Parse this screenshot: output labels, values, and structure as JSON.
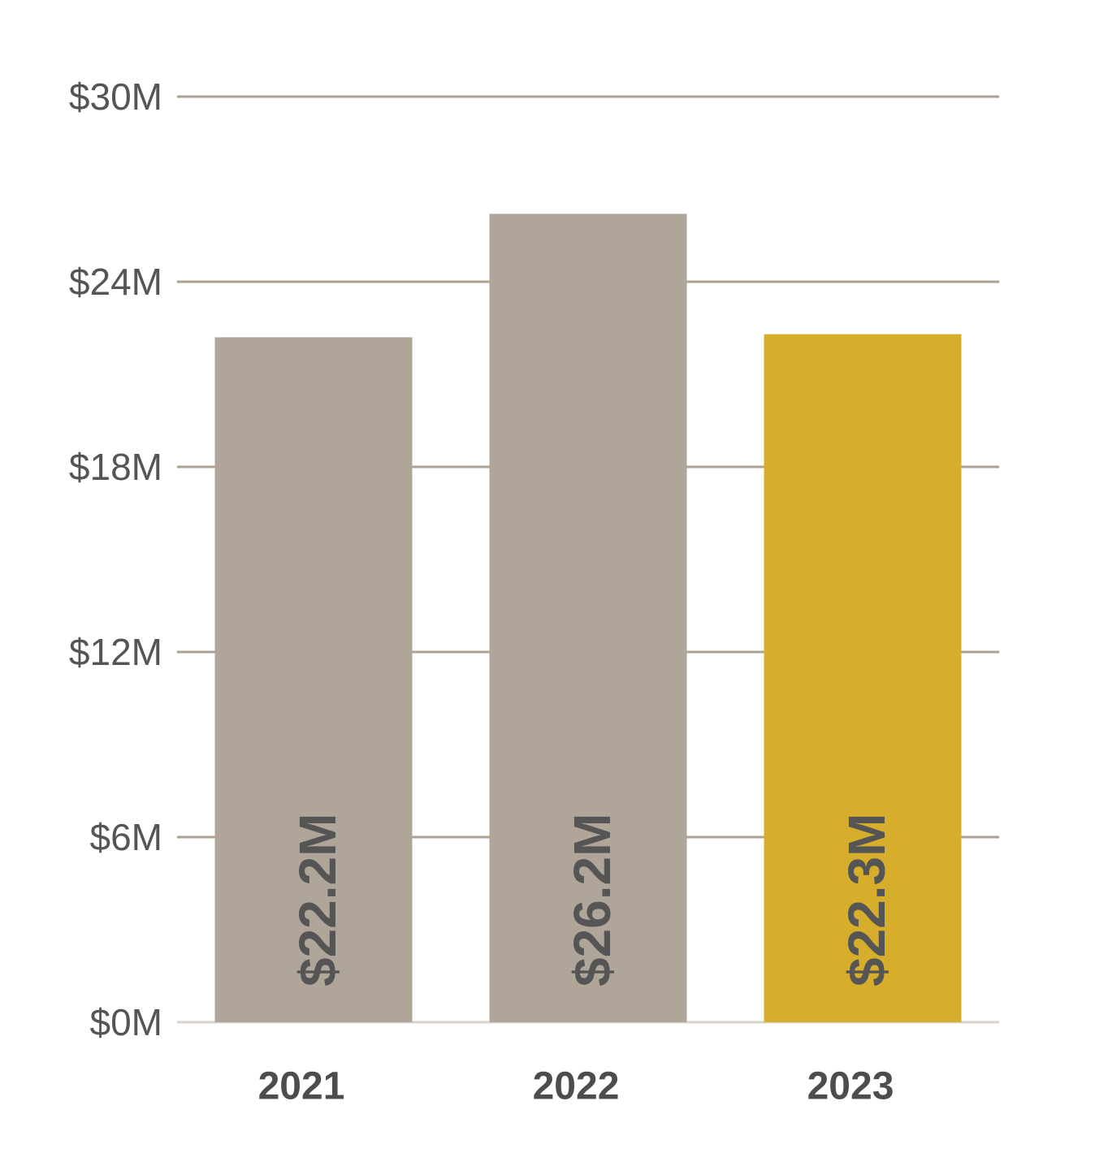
{
  "chart_data": {
    "type": "bar",
    "title": "",
    "xlabel": "",
    "ylabel": "",
    "categories": [
      "2021",
      "2022",
      "2023"
    ],
    "values": [
      22.2,
      26.2,
      22.3
    ],
    "data_labels": [
      "$22.2M",
      "$26.2M",
      "$22.3M"
    ],
    "bar_colors": [
      "#b0a599",
      "#b0a599",
      "#d6ae2b"
    ],
    "ylim": [
      0,
      30
    ],
    "y_ticks": [
      0,
      6,
      12,
      18,
      24,
      30
    ],
    "y_tick_labels": [
      "$0M",
      "$6M",
      "$12M",
      "$18M",
      "$24M",
      "$30M"
    ],
    "grid": true,
    "legend": "none",
    "data_label_orientation": "vertical"
  }
}
